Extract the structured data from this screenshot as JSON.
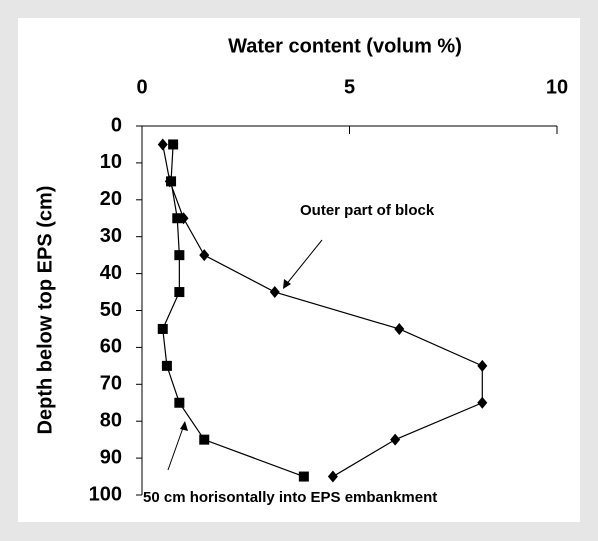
{
  "chart_data": {
    "type": "line",
    "x_label": "Water content (volum %)",
    "y_label": "Depth below top EPS (cm)",
    "xlim": [
      0,
      10
    ],
    "xticks": [
      0,
      5,
      10
    ],
    "ylim": [
      0,
      100
    ],
    "yticks": [
      0,
      10,
      20,
      30,
      40,
      50,
      60,
      70,
      80,
      90,
      100
    ],
    "y_inverted": true,
    "y": [
      5,
      15,
      25,
      35,
      45,
      55,
      65,
      75,
      85,
      95
    ],
    "series": [
      {
        "name": "Outer part of block",
        "color": "#000000",
        "marker": "diamond",
        "values": [
          0.5,
          0.67,
          1.0,
          1.5,
          3.2,
          6.2,
          8.2,
          8.2,
          6.1,
          4.6
        ]
      },
      {
        "name": "50 cm horisontally into EPS embankment",
        "color": "#000000",
        "marker": "square",
        "values": [
          0.75,
          0.7,
          0.85,
          0.9,
          0.9,
          0.5,
          0.6,
          0.9,
          1.5,
          3.9
        ]
      }
    ]
  }
}
